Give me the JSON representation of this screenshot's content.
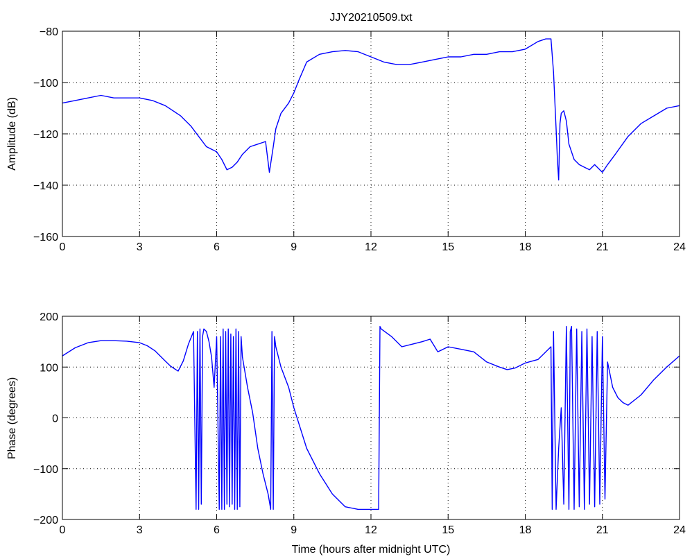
{
  "chart_data": [
    {
      "type": "line",
      "title": "JJY20210509.txt",
      "xlabel": "",
      "ylabel": "Amplitude (dB)",
      "xlim": [
        0,
        24
      ],
      "ylim": [
        -160,
        -80
      ],
      "xticks": [
        0,
        3,
        6,
        9,
        12,
        15,
        18,
        21,
        24
      ],
      "yticks": [
        -160,
        -140,
        -120,
        -100,
        -80
      ],
      "xtick_labels": [
        "0",
        "3",
        "6",
        "9",
        "12",
        "15",
        "18",
        "21",
        "24"
      ],
      "ytick_labels": [
        "−160",
        "−140",
        "−120",
        "−100",
        "−80"
      ],
      "grid": true,
      "color": "#0000ff",
      "series": [
        {
          "x": [
            0,
            0.5,
            1,
            1.5,
            2,
            2.5,
            3,
            3.5,
            4,
            4.3,
            4.6,
            5,
            5.3,
            5.6,
            6,
            6.2,
            6.4,
            6.6,
            6.8,
            7,
            7.3,
            7.6,
            7.9,
            8.05,
            8.2,
            8.3,
            8.5,
            8.8,
            9,
            9.2,
            9.5,
            10,
            10.5,
            11,
            11.5,
            12,
            12.5,
            13,
            13.5,
            14,
            14.5,
            15,
            15.5,
            16,
            16.5,
            17,
            17.5,
            18,
            18.5,
            18.8,
            19,
            19.1,
            19.2,
            19.25,
            19.3,
            19.35,
            19.4,
            19.5,
            19.6,
            19.7,
            19.9,
            20.1,
            20.3,
            20.5,
            20.7,
            20.9,
            21,
            21.2,
            21.5,
            22,
            22.5,
            23,
            23.5,
            24
          ],
          "y": [
            -108,
            -107,
            -106,
            -105,
            -106,
            -106,
            -106,
            -107,
            -109,
            -111,
            -113,
            -117,
            -121,
            -125,
            -127,
            -130,
            -134,
            -133,
            -131,
            -128,
            -125,
            -124,
            -123,
            -135,
            -125,
            -118,
            -112,
            -108,
            -104,
            -99,
            -92,
            -89,
            -88,
            -87.5,
            -88,
            -90,
            -92,
            -93,
            -93,
            -92,
            -91,
            -90,
            -90,
            -89,
            -89,
            -88,
            -88,
            -87,
            -84,
            -83,
            -83,
            -96,
            -118,
            -130,
            -138,
            -116,
            -112,
            -111,
            -115,
            -124,
            -130,
            -132,
            -133,
            -134,
            -132,
            -134,
            -135,
            -132,
            -128,
            -121,
            -116,
            -113,
            -110,
            -109
          ]
        }
      ]
    },
    {
      "type": "line",
      "title": "",
      "xlabel": "Time (hours after midnight UTC)",
      "ylabel": "Phase (degrees)",
      "xlim": [
        0,
        24
      ],
      "ylim": [
        -200,
        200
      ],
      "xticks": [
        0,
        3,
        6,
        9,
        12,
        15,
        18,
        21,
        24
      ],
      "yticks": [
        -200,
        -100,
        0,
        100,
        200
      ],
      "xtick_labels": [
        "0",
        "3",
        "6",
        "9",
        "12",
        "15",
        "18",
        "21",
        "24"
      ],
      "ytick_labels": [
        "−200",
        "−100",
        "0",
        "100",
        "200"
      ],
      "grid": true,
      "color": "#0000ff",
      "series": [
        {
          "x": [
            0,
            0.5,
            1,
            1.5,
            2,
            2.5,
            3,
            3.3,
            3.6,
            4,
            4.2,
            4.5,
            4.7,
            4.9,
            5.1,
            5.2,
            5.25,
            5.3,
            5.35,
            5.4,
            5.45,
            5.5,
            5.6,
            5.7,
            5.8,
            5.9,
            6.0,
            6.1,
            6.15,
            6.2,
            6.25,
            6.3,
            6.35,
            6.4,
            6.45,
            6.5,
            6.55,
            6.6,
            6.65,
            6.7,
            6.75,
            6.8,
            6.85,
            6.9,
            6.95,
            7.0,
            7.2,
            7.4,
            7.6,
            7.8,
            8.0,
            8.1,
            8.15,
            8.2,
            8.25,
            8.3,
            8.5,
            8.8,
            9,
            9.5,
            10,
            10.5,
            11,
            11.5,
            12,
            12.3,
            12.35,
            12.4,
            12.8,
            13.2,
            13.6,
            14,
            14.3,
            14.6,
            15,
            15.5,
            16,
            16.5,
            17,
            17.3,
            17.6,
            18,
            18.5,
            18.8,
            19,
            19.05,
            19.1,
            19.2,
            19.3,
            19.4,
            19.5,
            19.6,
            19.7,
            19.75,
            19.8,
            19.9,
            20.0,
            20.1,
            20.2,
            20.3,
            20.4,
            20.5,
            20.6,
            20.7,
            20.8,
            20.9,
            21.0,
            21.1,
            21.2,
            21.4,
            21.6,
            21.8,
            22,
            22.5,
            23,
            23.5,
            24
          ],
          "y": [
            122,
            138,
            148,
            152,
            152,
            151,
            148,
            142,
            132,
            112,
            102,
            92,
            112,
            145,
            170,
            -180,
            170,
            -180,
            175,
            -170,
            160,
            175,
            170,
            150,
            120,
            60,
            160,
            -180,
            160,
            -180,
            175,
            -180,
            170,
            -170,
            175,
            -175,
            165,
            -170,
            160,
            -180,
            175,
            -180,
            170,
            -175,
            160,
            120,
            60,
            10,
            -60,
            -110,
            -150,
            -180,
            170,
            -180,
            160,
            140,
            100,
            60,
            20,
            -60,
            -110,
            -150,
            -175,
            -180,
            -180,
            -180,
            180,
            175,
            160,
            140,
            145,
            150,
            155,
            130,
            140,
            135,
            130,
            110,
            100,
            95,
            98,
            108,
            115,
            130,
            140,
            -180,
            170,
            -180,
            -60,
            20,
            -170,
            180,
            -180,
            170,
            180,
            -180,
            175,
            -175,
            170,
            -180,
            175,
            -170,
            160,
            -175,
            170,
            -170,
            160,
            -160,
            110,
            60,
            40,
            30,
            25,
            45,
            75,
            100,
            122
          ]
        }
      ]
    }
  ]
}
